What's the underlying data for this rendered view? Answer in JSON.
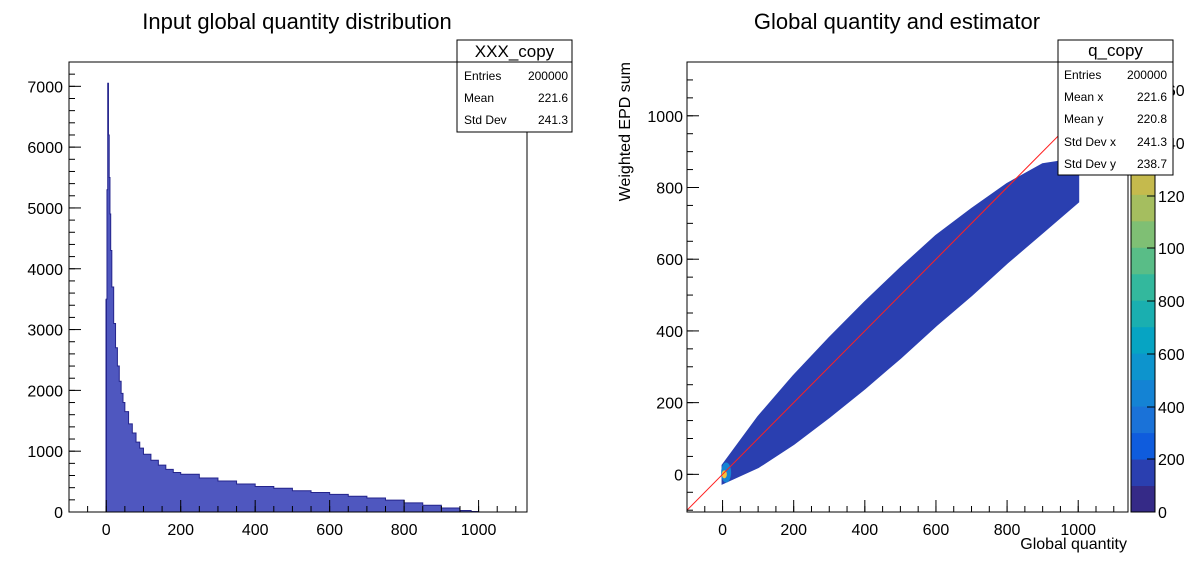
{
  "chart_data": [
    {
      "type": "histogram",
      "title": "Input global quantity distribution",
      "xlabel": "",
      "ylabel": "",
      "xlim": [
        -100,
        1130
      ],
      "ylim": [
        0,
        7400
      ],
      "x_ticks": [
        0,
        200,
        400,
        600,
        800,
        1000
      ],
      "y_ticks": [
        0,
        1000,
        2000,
        3000,
        4000,
        5000,
        6000,
        7000
      ],
      "fill_color": "#4f57bf",
      "line_color": "#24248c",
      "bins": {
        "x": [
          0,
          2,
          4,
          6,
          8,
          10,
          12,
          15,
          20,
          25,
          30,
          35,
          40,
          45,
          50,
          60,
          70,
          80,
          90,
          100,
          120,
          140,
          160,
          180,
          200,
          250,
          300,
          350,
          400,
          450,
          500,
          550,
          600,
          650,
          700,
          750,
          800,
          850,
          900,
          950,
          980,
          1000
        ],
        "y": [
          3500,
          5300,
          7050,
          6200,
          5500,
          4900,
          4300,
          3700,
          3100,
          2700,
          2400,
          2150,
          1950,
          1800,
          1650,
          1450,
          1300,
          1150,
          1050,
          950,
          850,
          770,
          700,
          650,
          620,
          560,
          510,
          460,
          420,
          390,
          350,
          320,
          290,
          260,
          230,
          195,
          150,
          110,
          65,
          25,
          8,
          0
        ]
      },
      "stats": {
        "name": "XXX_copy",
        "rows": [
          {
            "label": "Entries",
            "value": "200000"
          },
          {
            "label": "Mean",
            "value": "221.6"
          },
          {
            "label": "Std Dev",
            "value": "241.3"
          }
        ]
      }
    },
    {
      "type": "heatmap",
      "title": "Global quantity and estimator",
      "xlabel": "Global quantity",
      "ylabel": "Weighted EPD sum",
      "xlim": [
        -100,
        1140
      ],
      "ylim": [
        -105,
        1150
      ],
      "x_ticks": [
        0,
        200,
        400,
        600,
        800,
        1000
      ],
      "y_ticks": [
        0,
        200,
        400,
        600,
        800,
        1000
      ],
      "band": {
        "x": [
          0,
          100,
          200,
          300,
          400,
          500,
          600,
          700,
          800,
          900,
          1000
        ],
        "center": [
          0,
          90,
          180,
          270,
          360,
          450,
          540,
          620,
          700,
          770,
          820
        ],
        "halfwidth": [
          25,
          70,
          95,
          110,
          120,
          125,
          125,
          120,
          110,
          95,
          60
        ]
      },
      "fit_line": {
        "x": [
          -100,
          1140
        ],
        "y": [
          -100,
          1140
        ],
        "color": "#ff2020"
      },
      "palette_ticks": [
        "0",
        "200",
        "400",
        "600",
        "800",
        "100",
        "120",
        "140",
        "160"
      ],
      "palette_colors": [
        "#352a87",
        "#2a3fb0",
        "#0f5cdd",
        "#1a72d8",
        "#1483d4",
        "#0d94cd",
        "#06a4c3",
        "#1aafb0",
        "#33b89d",
        "#59bd87",
        "#7fbf74",
        "#a5be5f",
        "#c5ba4d",
        "#e2b840",
        "#f6c23a",
        "#f9dd2a",
        "#f9fb0e"
      ],
      "stats": {
        "name": "q_copy",
        "rows": [
          {
            "label": "Entries",
            "value": "200000"
          },
          {
            "label": "Mean x",
            "value": "221.6"
          },
          {
            "label": "Mean y",
            "value": "220.8"
          },
          {
            "label": "Std Dev x",
            "value": "241.3"
          },
          {
            "label": "Std Dev y",
            "value": "238.7"
          }
        ]
      },
      "point_color": "#2a3fb0",
      "core_color": "#f6c23a"
    }
  ]
}
